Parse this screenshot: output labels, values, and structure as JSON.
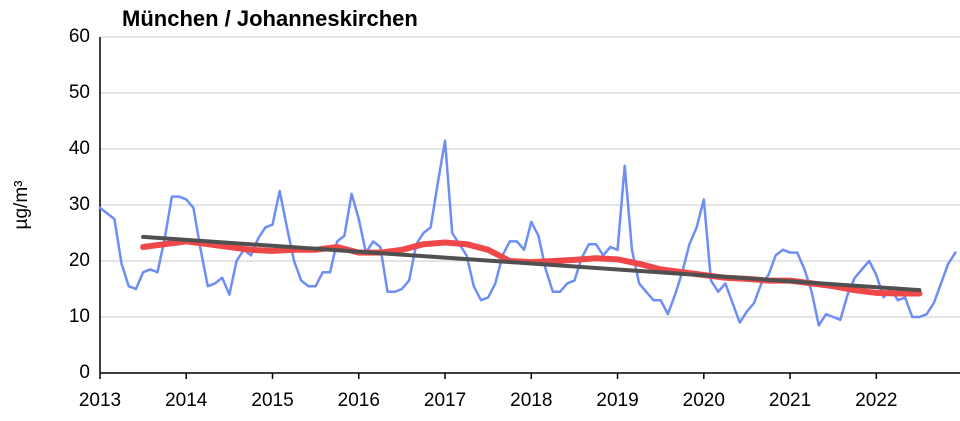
{
  "chart_data": {
    "type": "line",
    "title": "München / Johanneskirchen",
    "y_label": "µg/m³",
    "xlim": [
      2013,
      2022.97
    ],
    "xticks": [
      2013,
      2014,
      2015,
      2016,
      2017,
      2018,
      2019,
      2020,
      2021,
      2022
    ],
    "ylim": [
      0,
      60
    ],
    "yticks": [
      0,
      10,
      20,
      30,
      40,
      50,
      60
    ],
    "grid": true,
    "series": [
      {
        "color": "#6f8ef5",
        "x": [
          2013,
          2013.083,
          2013.167,
          2013.25,
          2013.333,
          2013.417,
          2013.5,
          2013.583,
          2013.667,
          2013.75,
          2013.833,
          2013.917,
          2014,
          2014.083,
          2014.167,
          2014.25,
          2014.333,
          2014.417,
          2014.5,
          2014.583,
          2014.667,
          2014.75,
          2014.833,
          2014.917,
          2015,
          2015.083,
          2015.167,
          2015.25,
          2015.333,
          2015.417,
          2015.5,
          2015.583,
          2015.667,
          2015.75,
          2015.833,
          2015.917,
          2016,
          2016.083,
          2016.167,
          2016.25,
          2016.333,
          2016.417,
          2016.5,
          2016.583,
          2016.667,
          2016.75,
          2016.833,
          2016.917,
          2017,
          2017.083,
          2017.167,
          2017.25,
          2017.333,
          2017.417,
          2017.5,
          2017.583,
          2017.667,
          2017.75,
          2017.833,
          2017.917,
          2018,
          2018.083,
          2018.167,
          2018.25,
          2018.333,
          2018.417,
          2018.5,
          2018.583,
          2018.667,
          2018.75,
          2018.833,
          2018.917,
          2019,
          2019.083,
          2019.167,
          2019.25,
          2019.333,
          2019.417,
          2019.5,
          2019.583,
          2019.667,
          2019.75,
          2019.833,
          2019.917,
          2020,
          2020.083,
          2020.167,
          2020.25,
          2020.333,
          2020.417,
          2020.5,
          2020.583,
          2020.667,
          2020.75,
          2020.833,
          2020.917,
          2021,
          2021.083,
          2021.167,
          2021.25,
          2021.333,
          2021.417,
          2021.5,
          2021.583,
          2021.667,
          2021.75,
          2021.833,
          2021.917,
          2022,
          2022.083,
          2022.167,
          2022.25,
          2022.333,
          2022.417,
          2022.5,
          2022.583,
          2022.667,
          2022.75,
          2022.833,
          2022.917
        ],
        "values": [
          29.5,
          28.5,
          27.5,
          19.5,
          15.5,
          15,
          18,
          18.5,
          18,
          24,
          31.5,
          31.5,
          31,
          29.5,
          22,
          15.5,
          16,
          17,
          14,
          20,
          22,
          21,
          24,
          26,
          26.5,
          32.5,
          26,
          20,
          16.5,
          15.5,
          15.5,
          18,
          18,
          23.5,
          24.5,
          32,
          27.5,
          21.5,
          23.5,
          22.5,
          14.5,
          14.5,
          15,
          16.5,
          23,
          25,
          26,
          34,
          41.5,
          25,
          23,
          21,
          15.5,
          13,
          13.5,
          16,
          21,
          23.5,
          23.5,
          22,
          27,
          24.5,
          18.5,
          14.5,
          14.5,
          16,
          16.5,
          20.5,
          23,
          23,
          21,
          22.5,
          22,
          37,
          22,
          16,
          14.5,
          13,
          13,
          10.5,
          14,
          18,
          23,
          26,
          31,
          16.5,
          14.5,
          16,
          12.5,
          9,
          11,
          12.5,
          16,
          17.5,
          21,
          22,
          21.5,
          21.5,
          18.5,
          14.5,
          8.5,
          10.5,
          10,
          9.5,
          14,
          17,
          18.5,
          20,
          17.5,
          13.5,
          15,
          13,
          13.5,
          10,
          10,
          10.5,
          12.5,
          16,
          19.5,
          21.5
        ]
      },
      {
        "color": "#f04848",
        "x": [
          2013.5,
          2013.75,
          2014,
          2014.25,
          2014.5,
          2014.75,
          2015,
          2015.25,
          2015.5,
          2015.75,
          2016,
          2016.25,
          2016.5,
          2016.75,
          2017,
          2017.25,
          2017.5,
          2017.75,
          2018,
          2018.25,
          2018.5,
          2018.75,
          2019,
          2019.25,
          2019.5,
          2019.75,
          2020,
          2020.25,
          2020.5,
          2020.75,
          2021,
          2021.25,
          2021.5,
          2021.75,
          2022,
          2022.25,
          2022.5
        ],
        "values": [
          22.5,
          23,
          23.5,
          23,
          22.5,
          22,
          21.8,
          22,
          22,
          22.5,
          21.5,
          21.5,
          22,
          23,
          23.3,
          23,
          22,
          20,
          19.8,
          20,
          20.2,
          20.5,
          20.3,
          19.5,
          18.5,
          18,
          17.5,
          17,
          16.8,
          16.5,
          16.5,
          16,
          15.5,
          14.8,
          14.3,
          14.2,
          14.2
        ]
      },
      {
        "color": "#505050",
        "x": [
          2013.5,
          2022.5
        ],
        "values": [
          24.3,
          14.8
        ]
      }
    ]
  }
}
